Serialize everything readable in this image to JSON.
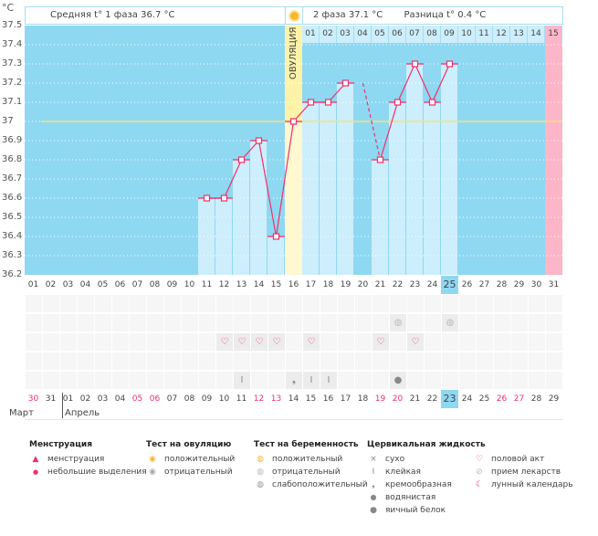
{
  "colors": {
    "chart_bg": "#8fd8f2",
    "bar": "#cdeefc",
    "line": "#f0306a",
    "ovulation": "#fdf3a8",
    "ovulation_bar": "#fff8d0",
    "last_day": "#fcb6c8",
    "average_line": "#f5e37a",
    "highlight": "#8fd8f2",
    "weekend": "#f0306a"
  },
  "header": {
    "phase1": "Средняя t° 1 фаза 36.7 °C",
    "phase2": "2 фаза 37.1 °C",
    "difference": "Разница t° 0.4 °C",
    "ovulation_label": "ОВУЛЯЦИЯ",
    "unit": "°C"
  },
  "chart_data": {
    "type": "line",
    "ylabel": "°C",
    "ylim": [
      36.2,
      37.5
    ],
    "yticks": [
      "37.5",
      "37.4",
      "37.3",
      "37.2",
      "37.1",
      "37",
      "36.9",
      "36.8",
      "36.7",
      "36.6",
      "36.5",
      "36.4",
      "36.3",
      "36.2"
    ],
    "x": [
      "01",
      "02",
      "03",
      "04",
      "05",
      "06",
      "07",
      "08",
      "09",
      "10",
      "11",
      "12",
      "13",
      "14",
      "15",
      "16",
      "17",
      "18",
      "19",
      "20",
      "21",
      "22",
      "23",
      "24",
      "25",
      "26",
      "27",
      "28",
      "29",
      "30",
      "31"
    ],
    "temperatures": [
      null,
      null,
      null,
      null,
      null,
      null,
      null,
      null,
      null,
      null,
      36.6,
      36.6,
      36.8,
      36.9,
      36.4,
      37.0,
      37.1,
      37.1,
      37.2,
      null,
      36.8,
      37.1,
      37.3,
      37.1,
      37.3,
      null,
      null,
      null,
      null,
      null,
      null
    ],
    "average_line": 37.0,
    "ovulation_day": "16",
    "current_day": "25",
    "phase2_days": [
      "01",
      "02",
      "03",
      "04",
      "05",
      "06",
      "07",
      "08",
      "09",
      "10",
      "11",
      "12",
      "13",
      "14",
      "15"
    ]
  },
  "calendar": {
    "dates": [
      "30",
      "31",
      "01",
      "02",
      "03",
      "04",
      "05",
      "06",
      "07",
      "08",
      "09",
      "10",
      "11",
      "12",
      "13",
      "14",
      "15",
      "16",
      "17",
      "18",
      "19",
      "20",
      "21",
      "22",
      "23",
      "24",
      "25",
      "26",
      "27",
      "28",
      "29"
    ],
    "weekends": [
      "30",
      "05",
      "06",
      "12",
      "13",
      "19",
      "20",
      "26",
      "27"
    ],
    "today": "23",
    "months": [
      "Март",
      "Апрель"
    ]
  },
  "marks": {
    "pregnancy_test_negative": [
      "22",
      "25"
    ],
    "intercourse": [
      "12",
      "13",
      "14",
      "15",
      "17",
      "21",
      "23"
    ],
    "cervical": [
      {
        "day": "13",
        "type": "sticky"
      },
      {
        "day": "16",
        "type": "creamy"
      },
      {
        "day": "17",
        "type": "sticky"
      },
      {
        "day": "18",
        "type": "sticky"
      },
      {
        "day": "22",
        "type": "watery"
      }
    ]
  },
  "legend": {
    "menstruation": {
      "title": "Менструация",
      "items": [
        "менструация",
        "небольшие выделения"
      ]
    },
    "ovulation_test": {
      "title": "Тест на овуляцию",
      "items": [
        "положительный",
        "отрицательный"
      ]
    },
    "pregnancy_test": {
      "title": "Тест на беременность",
      "items": [
        "положительный",
        "отрицательный",
        "слабоположительный"
      ]
    },
    "cervical": {
      "title": "Цервикальная жидкость",
      "items": [
        "сухо",
        "клейкая",
        "кремообразная",
        "водянистая",
        "яичный белок"
      ]
    },
    "other": {
      "items": [
        "половой акт",
        "прием лекарств",
        "лунный календарь"
      ]
    }
  }
}
